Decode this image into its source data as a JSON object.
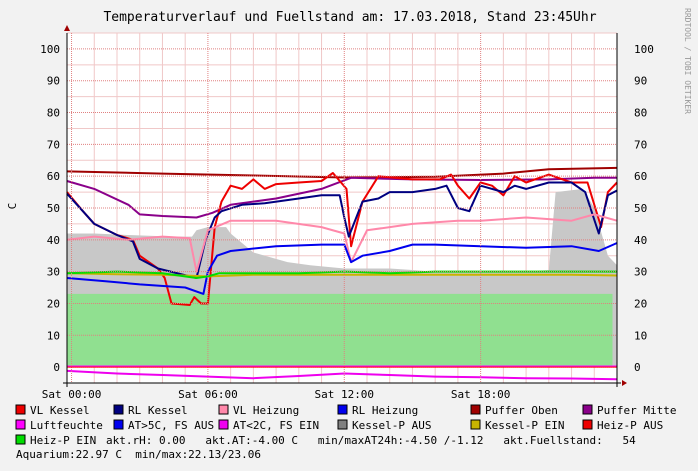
{
  "chart_data": {
    "type": "line",
    "title": "Temperaturverlauf und Fuellstand am: 17.03.2018, Stand 23:45Uhr",
    "watermark": "RRDTOOL / TOBI OETIKER",
    "ylabel": "C",
    "ylim": [
      -5,
      105
    ],
    "yticks": [
      0,
      10,
      20,
      30,
      40,
      50,
      60,
      70,
      80,
      90,
      100
    ],
    "xlim": [
      -0.2,
      24
    ],
    "xticks": [
      {
        "t": 0,
        "label": "Sat 00:00"
      },
      {
        "t": 6,
        "label": "Sat 06:00"
      },
      {
        "t": 12,
        "label": "Sat 12:00"
      },
      {
        "t": 18,
        "label": "Sat 18:00"
      }
    ],
    "grid": true,
    "series": [
      {
        "name": "Kessel-P AUS",
        "kind": "area",
        "color": "#c8c8c8",
        "points": [
          [
            -0.2,
            42
          ],
          [
            1,
            42
          ],
          [
            2.5,
            41.5
          ],
          [
            4.5,
            41
          ],
          [
            5.3,
            41
          ],
          [
            5.5,
            43
          ],
          [
            6,
            44
          ],
          [
            6.8,
            44
          ],
          [
            7,
            42
          ],
          [
            8,
            36
          ],
          [
            9.5,
            33
          ],
          [
            10.5,
            32
          ],
          [
            12,
            31
          ],
          [
            13,
            31
          ],
          [
            14,
            31
          ],
          [
            15,
            30.5
          ],
          [
            16,
            30
          ],
          [
            17,
            30
          ],
          [
            18,
            30
          ],
          [
            19,
            30
          ],
          [
            20,
            30
          ],
          [
            21,
            30.5
          ],
          [
            21.3,
            55
          ],
          [
            22.5,
            56
          ],
          [
            23,
            50
          ],
          [
            23.6,
            35
          ],
          [
            24,
            32
          ]
        ]
      },
      {
        "name": "Heiz-P EIN",
        "kind": "area",
        "color": "#90e090",
        "points": [
          [
            -0.2,
            23
          ],
          [
            23.8,
            23
          ],
          [
            23.8,
            0
          ],
          [
            24,
            0
          ]
        ]
      },
      {
        "name": "Puffer Oben",
        "color": "#a00000",
        "points": [
          [
            -0.2,
            61.5
          ],
          [
            4,
            60.8
          ],
          [
            8,
            60.2
          ],
          [
            12,
            59.6
          ],
          [
            16,
            59.8
          ],
          [
            19,
            60.8
          ],
          [
            21,
            62.2
          ],
          [
            24,
            62.6
          ]
        ]
      },
      {
        "name": "Puffer Mitte",
        "color": "#8a008a",
        "points": [
          [
            -0.2,
            58.5
          ],
          [
            1,
            56
          ],
          [
            2.5,
            51
          ],
          [
            3,
            48
          ],
          [
            4,
            47.5
          ],
          [
            5.5,
            47
          ],
          [
            6.2,
            48.5
          ],
          [
            7,
            51
          ],
          [
            9,
            53
          ],
          [
            11,
            56
          ],
          [
            12.3,
            59.5
          ],
          [
            15,
            59
          ],
          [
            18,
            58.8
          ],
          [
            21,
            59
          ],
          [
            23,
            59.5
          ],
          [
            24,
            59.5
          ]
        ]
      },
      {
        "name": "VL Kessel",
        "color": "#ee0000",
        "points": [
          [
            -0.2,
            55
          ],
          [
            0.5,
            49
          ],
          [
            1,
            45
          ],
          [
            2,
            41.5
          ],
          [
            2.7,
            40
          ],
          [
            3,
            35
          ],
          [
            3.8,
            31
          ],
          [
            4.1,
            28
          ],
          [
            4.4,
            20
          ],
          [
            5.2,
            19.5
          ],
          [
            5.4,
            22
          ],
          [
            5.7,
            20
          ],
          [
            6,
            20
          ],
          [
            6.3,
            44
          ],
          [
            6.6,
            52
          ],
          [
            7,
            57
          ],
          [
            7.5,
            56
          ],
          [
            8,
            59
          ],
          [
            8.5,
            56
          ],
          [
            9,
            57.5
          ],
          [
            10,
            58
          ],
          [
            11,
            58.5
          ],
          [
            11.5,
            61
          ],
          [
            12.1,
            56
          ],
          [
            12.3,
            38
          ],
          [
            12.8,
            52
          ],
          [
            13.5,
            60
          ],
          [
            15,
            59
          ],
          [
            16.2,
            59
          ],
          [
            16.7,
            60.5
          ],
          [
            17,
            57
          ],
          [
            17.5,
            53
          ],
          [
            18,
            58
          ],
          [
            18.5,
            57
          ],
          [
            19,
            54
          ],
          [
            19.5,
            60
          ],
          [
            20,
            58
          ],
          [
            21,
            60.5
          ],
          [
            22,
            58
          ],
          [
            22.7,
            58
          ],
          [
            23.3,
            44
          ],
          [
            23.6,
            55
          ],
          [
            24,
            58
          ]
        ]
      },
      {
        "name": "RL Kessel",
        "color": "#000080",
        "points": [
          [
            -0.2,
            54.5
          ],
          [
            0.5,
            49
          ],
          [
            1,
            45
          ],
          [
            2,
            41.5
          ],
          [
            2.7,
            39.5
          ],
          [
            3,
            34
          ],
          [
            3.8,
            31
          ],
          [
            5.5,
            28
          ],
          [
            5.9,
            40
          ],
          [
            6.3,
            47
          ],
          [
            6.6,
            49
          ],
          [
            7.5,
            51
          ],
          [
            8.5,
            51.5
          ],
          [
            10,
            53
          ],
          [
            11,
            54
          ],
          [
            11.8,
            54
          ],
          [
            12,
            47
          ],
          [
            12.2,
            41
          ],
          [
            12.8,
            52
          ],
          [
            13.5,
            53
          ],
          [
            14,
            55
          ],
          [
            15,
            55
          ],
          [
            16,
            56
          ],
          [
            16.5,
            57
          ],
          [
            17,
            50
          ],
          [
            17.5,
            49
          ],
          [
            18,
            57
          ],
          [
            19,
            55
          ],
          [
            19.5,
            57
          ],
          [
            20,
            56
          ],
          [
            21,
            58
          ],
          [
            22,
            58
          ],
          [
            22.6,
            55
          ],
          [
            23.2,
            42
          ],
          [
            23.6,
            54
          ],
          [
            24,
            55.5
          ]
        ]
      },
      {
        "name": "VL Heizung",
        "color": "#ff88aa",
        "points": [
          [
            -0.2,
            40
          ],
          [
            1,
            41
          ],
          [
            2.5,
            40
          ],
          [
            4,
            41
          ],
          [
            5.2,
            40.5
          ],
          [
            5.5,
            30
          ],
          [
            6,
            43
          ],
          [
            7,
            46
          ],
          [
            9,
            46
          ],
          [
            11,
            44
          ],
          [
            12,
            42
          ],
          [
            12.3,
            33
          ],
          [
            13,
            43
          ],
          [
            15,
            45
          ],
          [
            17,
            46
          ],
          [
            18,
            46
          ],
          [
            20,
            47
          ],
          [
            22,
            46
          ],
          [
            23,
            48
          ],
          [
            24,
            46
          ]
        ]
      },
      {
        "name": "RL Heizung",
        "color": "#0000ee",
        "points": [
          [
            -0.2,
            28
          ],
          [
            1.5,
            27
          ],
          [
            3,
            26
          ],
          [
            5,
            25
          ],
          [
            5.8,
            23
          ],
          [
            6,
            30
          ],
          [
            6.4,
            35
          ],
          [
            7,
            36.5
          ],
          [
            9,
            38
          ],
          [
            11,
            38.5
          ],
          [
            12,
            38.5
          ],
          [
            12.3,
            33
          ],
          [
            12.8,
            35
          ],
          [
            14,
            36.5
          ],
          [
            15,
            38.5
          ],
          [
            16,
            38.5
          ],
          [
            18,
            38
          ],
          [
            20,
            37.5
          ],
          [
            22,
            38
          ],
          [
            23.2,
            36.5
          ],
          [
            24,
            39
          ]
        ]
      },
      {
        "name": "Kessel-P EIN",
        "color": "#c8b400",
        "points": [
          [
            -0.2,
            29.5
          ],
          [
            2,
            29.2
          ],
          [
            4,
            29
          ],
          [
            6,
            28.5
          ],
          [
            8,
            29
          ],
          [
            10,
            29
          ],
          [
            12,
            29
          ],
          [
            14,
            29
          ],
          [
            16,
            29
          ],
          [
            18,
            29
          ],
          [
            20,
            29
          ],
          [
            22,
            29
          ],
          [
            24,
            28.8
          ]
        ]
      },
      {
        "name": "Heiz-P EIN",
        "color": "#00dd00",
        "points": [
          [
            -0.2,
            29.5
          ],
          [
            2,
            30
          ],
          [
            4,
            29.5
          ],
          [
            5.5,
            28
          ],
          [
            6,
            28.5
          ],
          [
            6.5,
            29.5
          ],
          [
            8,
            29.5
          ],
          [
            10,
            29.5
          ],
          [
            12,
            30
          ],
          [
            14,
            29.5
          ],
          [
            16,
            30
          ],
          [
            18,
            30
          ],
          [
            20,
            30
          ],
          [
            22,
            30
          ],
          [
            24,
            30
          ]
        ]
      },
      {
        "name": "Luftfeuchte",
        "color": "#ff00ff",
        "points": [
          [
            -0.2,
            0.2
          ],
          [
            24,
            0.2
          ]
        ]
      },
      {
        "name": "AT<2C, FS EIN",
        "color": "#ee00ee",
        "points": [
          [
            -0.2,
            -1.2
          ],
          [
            2,
            -2
          ],
          [
            4,
            -2.5
          ],
          [
            6,
            -3
          ],
          [
            8,
            -3.5
          ],
          [
            10,
            -2.8
          ],
          [
            12,
            -2
          ],
          [
            14,
            -2.5
          ],
          [
            16,
            -3
          ],
          [
            18,
            -3.2
          ],
          [
            20,
            -3.5
          ],
          [
            22,
            -3.6
          ],
          [
            24,
            -3.8
          ]
        ]
      }
    ],
    "legend": {
      "rows": [
        [
          {
            "label": "VL Kessel",
            "color": "#ee0000"
          },
          {
            "label": "RL Kessel",
            "color": "#000080"
          },
          {
            "label": "VL Heizung",
            "color": "#ff88aa"
          },
          {
            "label": "RL Heizung",
            "color": "#0000ee"
          },
          {
            "label": "Puffer Oben",
            "color": "#a00000"
          },
          {
            "label": "Puffer Mitte",
            "color": "#8a008a"
          }
        ],
        [
          {
            "label": "Luftfeuchte",
            "color": "#ff00ff"
          },
          {
            "label": "AT>5C, FS AUS",
            "color": "#0000ee"
          },
          {
            "label": "AT<2C, FS EIN",
            "color": "#ee00ee"
          },
          {
            "label": "Kessel-P AUS",
            "color": "#808080"
          },
          {
            "label": "Kessel-P EIN",
            "color": "#c8b400"
          },
          {
            "label": "Heiz-P AUS",
            "color": "#ee0000"
          }
        ]
      ],
      "row3_swatch": {
        "label": "Heiz-P EIN",
        "color": "#00dd00"
      },
      "row3_text": "akt.rH: 0.00   akt.AT:-4.00 C   min/maxAT24h:-4.50 /-1.12   akt.Fuellstand:   54",
      "row4_text": "Aquarium:22.97 C  min/max:22.13/23.06"
    }
  }
}
